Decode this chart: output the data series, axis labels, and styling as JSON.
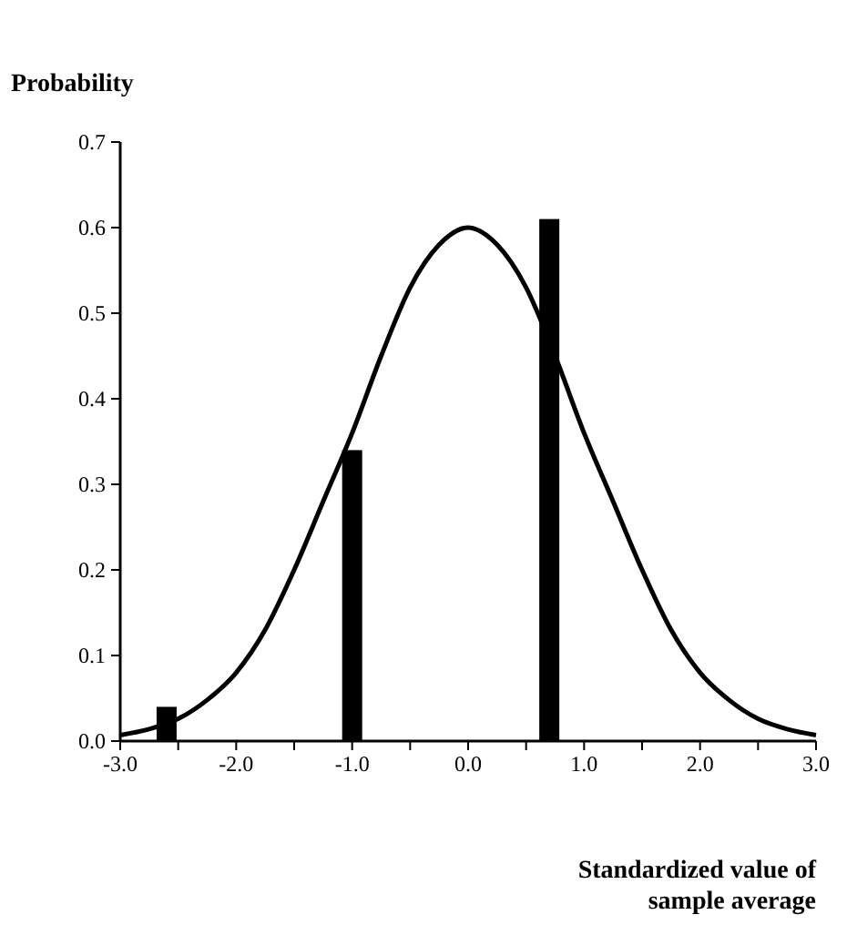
{
  "chart_data": {
    "type": "bar",
    "ylabel": "Probability",
    "xlabel": "Standardized value of\nsample average",
    "xlim": [
      -3,
      3
    ],
    "ylim": [
      0,
      0.7
    ],
    "xticks": [
      {
        "value": -3,
        "label": "-3.0"
      },
      {
        "value": -2.5,
        "label": null
      },
      {
        "value": -2,
        "label": "-2.0"
      },
      {
        "value": -1.5,
        "label": null
      },
      {
        "value": -1,
        "label": "-1.0"
      },
      {
        "value": -0.5,
        "label": null
      },
      {
        "value": 0,
        "label": "0.0"
      },
      {
        "value": 0.5,
        "label": null
      },
      {
        "value": 1,
        "label": "1.0"
      },
      {
        "value": 1.5,
        "label": null
      },
      {
        "value": 2,
        "label": "2.0"
      },
      {
        "value": 2.5,
        "label": null
      },
      {
        "value": 3,
        "label": "3.0"
      }
    ],
    "yticks": [
      {
        "value": 0,
        "label": "0.0"
      },
      {
        "value": 0.1,
        "label": "0.1"
      },
      {
        "value": 0.2,
        "label": "0.2"
      },
      {
        "value": 0.3,
        "label": "0.3"
      },
      {
        "value": 0.4,
        "label": "0.4"
      },
      {
        "value": 0.5,
        "label": "0.5"
      },
      {
        "value": 0.6,
        "label": "0.6"
      },
      {
        "value": 0.7,
        "label": "0.7"
      }
    ],
    "series": [
      {
        "type": "line",
        "color": "#000000",
        "x": [
          -3,
          -2.75,
          -2.5,
          -2.25,
          -2,
          -1.75,
          -1.5,
          -1.25,
          -1,
          -0.75,
          -0.5,
          -0.25,
          0,
          0.25,
          0.5,
          0.75,
          1,
          1.25,
          1.5,
          1.75,
          2,
          2.25,
          2.5,
          2.75,
          3
        ],
        "values": [
          0.007,
          0.014,
          0.026,
          0.048,
          0.08,
          0.13,
          0.2,
          0.28,
          0.36,
          0.45,
          0.53,
          0.58,
          0.6,
          0.58,
          0.53,
          0.45,
          0.36,
          0.28,
          0.2,
          0.13,
          0.08,
          0.048,
          0.026,
          0.014,
          0.007
        ]
      },
      {
        "color": "#000000",
        "x": [
          -2.6,
          -1.0,
          0.7
        ],
        "values": [
          0.04,
          0.34,
          0.61
        ]
      }
    ]
  }
}
